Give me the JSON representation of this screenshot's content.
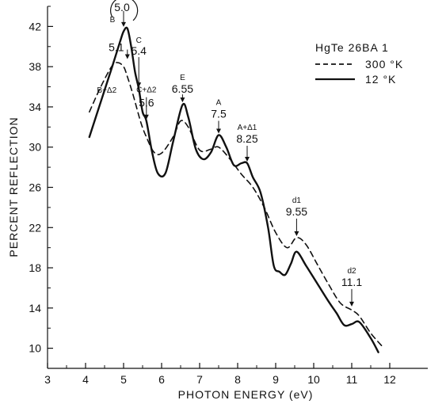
{
  "chart_data": {
    "type": "line",
    "title": "",
    "xlabel": "PHOTON   ENERGY (eV)",
    "ylabel": "PERCENT  REFLECTION",
    "xlim": [
      3,
      13
    ],
    "ylim": [
      8,
      44
    ],
    "x_ticks": [
      3,
      4,
      5,
      6,
      7,
      8,
      9,
      10,
      11,
      12
    ],
    "y_ticks": [
      10,
      14,
      18,
      22,
      26,
      30,
      34,
      38,
      42
    ],
    "grid": false,
    "legend": {
      "title": "HgTe  26BA 1",
      "placement": "top-right",
      "entries": [
        "300 °K",
        "12 °K"
      ]
    },
    "series": [
      {
        "name": "300 °K",
        "style": "dashed",
        "color": "#111111",
        "x": [
          4.1,
          4.4,
          4.7,
          4.85,
          5.0,
          5.1,
          5.25,
          5.45,
          5.6,
          5.8,
          6.0,
          6.3,
          6.5,
          6.7,
          7.0,
          7.3,
          7.5,
          7.8,
          8.1,
          8.4,
          8.7,
          9.0,
          9.3,
          9.55,
          9.8,
          10.1,
          10.4,
          10.7,
          11.0,
          11.2,
          11.5,
          11.8
        ],
        "y": [
          33.5,
          36.0,
          38.1,
          38.4,
          38.0,
          37.0,
          35.2,
          32.5,
          31.0,
          29.5,
          29.4,
          31.0,
          32.6,
          32.0,
          29.7,
          29.8,
          30.0,
          28.8,
          27.3,
          26.0,
          24.0,
          21.5,
          20.0,
          21.0,
          20.3,
          18.3,
          16.3,
          14.5,
          13.8,
          13.2,
          11.5,
          10.2
        ]
      },
      {
        "name": "12 °K",
        "style": "solid",
        "color": "#111111",
        "x": [
          4.1,
          4.4,
          4.7,
          4.9,
          5.0,
          5.1,
          5.2,
          5.3,
          5.4,
          5.5,
          5.6,
          5.75,
          5.9,
          6.1,
          6.3,
          6.55,
          6.7,
          6.9,
          7.1,
          7.3,
          7.5,
          7.7,
          7.9,
          8.1,
          8.25,
          8.4,
          8.6,
          8.8,
          8.95,
          9.1,
          9.25,
          9.4,
          9.55,
          9.8,
          10.1,
          10.4,
          10.6,
          10.8,
          11.0,
          11.2,
          11.5,
          11.7
        ],
        "y": [
          31.0,
          34.5,
          38.0,
          40.4,
          41.5,
          41.8,
          40.0,
          37.5,
          35.8,
          33.5,
          32.6,
          29.5,
          27.4,
          27.4,
          30.5,
          34.2,
          33.0,
          29.8,
          28.8,
          29.5,
          31.2,
          30.0,
          28.2,
          28.4,
          28.4,
          27.0,
          25.5,
          22.0,
          18.2,
          17.6,
          17.3,
          18.4,
          19.6,
          18.2,
          16.4,
          14.6,
          13.5,
          12.3,
          12.4,
          12.6,
          11.0,
          9.6
        ]
      }
    ],
    "annotations": [
      {
        "label": "B",
        "value": "5.0",
        "x": 5.0,
        "y": 41.8,
        "circled": true
      },
      {
        "label": "",
        "value": "5.1",
        "x": 5.1,
        "y": 38.6
      },
      {
        "label": "C",
        "value": "5.4",
        "x": 5.4,
        "y": 35.8
      },
      {
        "label": "B+Δ2",
        "value": "",
        "x": 5.1,
        "y": 34.8
      },
      {
        "label": "C+Δ2",
        "value": "5.6",
        "x": 5.6,
        "y": 32.6
      },
      {
        "label": "E",
        "value": "6.55",
        "x": 6.55,
        "y": 34.3
      },
      {
        "label": "A",
        "value": "7.5",
        "x": 7.5,
        "y": 31.2
      },
      {
        "label": "A+Δ1",
        "value": "8.25",
        "x": 8.25,
        "y": 28.4
      },
      {
        "label": "d1",
        "value": "9.55",
        "x": 9.55,
        "y": 21.0
      },
      {
        "label": "d2",
        "value": "11.1",
        "x": 11.0,
        "y": 14.0
      }
    ]
  }
}
